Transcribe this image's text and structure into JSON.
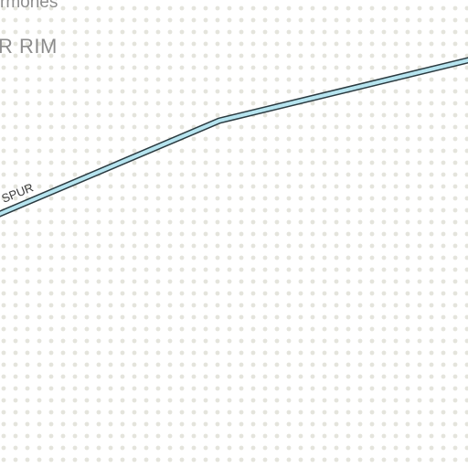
{
  "map": {
    "background_color": "#ffffff",
    "pattern_dot_color": "#e4e4dc",
    "road_fill_color": "#b6e4ef",
    "road_casing_color": "#2a3a40"
  },
  "labels": {
    "place_top": "rmones",
    "area": "R RIM",
    "road": "SPUR"
  }
}
